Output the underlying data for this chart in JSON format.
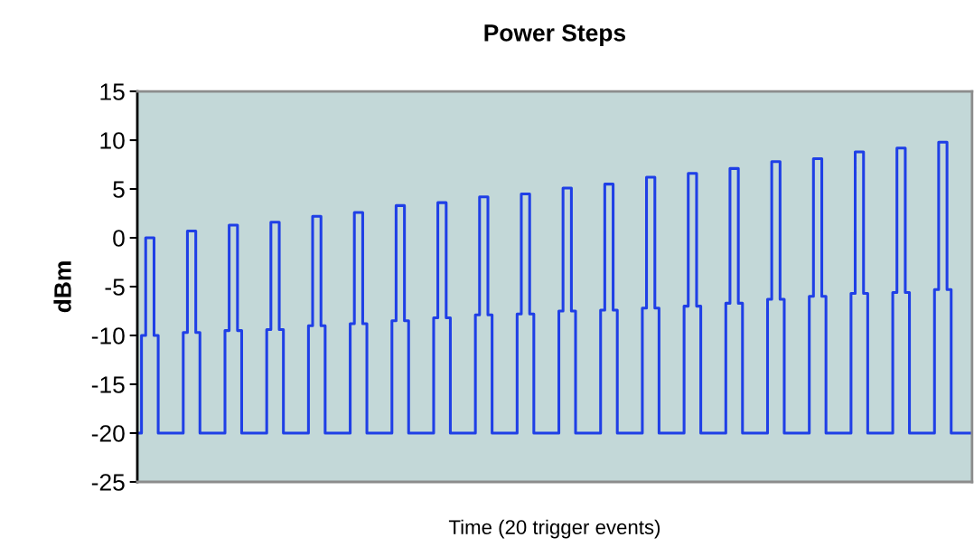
{
  "chart_data": {
    "type": "step",
    "title": "Power Steps",
    "xlabel": "Time (20 trigger events)",
    "ylabel": "dBm",
    "categories": [
      null,
      null,
      null,
      null,
      null,
      null,
      null,
      null,
      null,
      null,
      null,
      null,
      null,
      null,
      null,
      null,
      null,
      null,
      null,
      null,
      null,
      null,
      null,
      null,
      null,
      null,
      null,
      null,
      null,
      null,
      null,
      null,
      null,
      null,
      null,
      null,
      null,
      null,
      null,
      null,
      null,
      null,
      null,
      null,
      null,
      null,
      null,
      null,
      null,
      null,
      null,
      null,
      null,
      null,
      null,
      null,
      null,
      null,
      null,
      null,
      null,
      null,
      null,
      null,
      null,
      null,
      null,
      null,
      null,
      null,
      null,
      null,
      null,
      null,
      null,
      null,
      null,
      null,
      null,
      null,
      null,
      null,
      null,
      null,
      null,
      null,
      null,
      null,
      null,
      null,
      null,
      null,
      null,
      null,
      null,
      null,
      null,
      null,
      null,
      null,
      null,
      null,
      null,
      null,
      null,
      null,
      null,
      null,
      null,
      null,
      null,
      null,
      null,
      null,
      null,
      null,
      null,
      null,
      null,
      null,
      null,
      null,
      null,
      null,
      null,
      null,
      null,
      null,
      null,
      null,
      null,
      null,
      null,
      null,
      null,
      null,
      null,
      null,
      null,
      null,
      null,
      null,
      null,
      null,
      null,
      null,
      null,
      null,
      null,
      null,
      null,
      null,
      null,
      null,
      null,
      null,
      null,
      null,
      null,
      null,
      null,
      null,
      null,
      null,
      null,
      null,
      null,
      null,
      null,
      null,
      null,
      null,
      null,
      null,
      null,
      null,
      null,
      null,
      null,
      null,
      null,
      null,
      null,
      null,
      null,
      null,
      null,
      null,
      null,
      null,
      null,
      null,
      null,
      null,
      null,
      null,
      null,
      null,
      null,
      null,
      null
    ],
    "values": [
      -20,
      -10,
      0,
      0,
      -10,
      -20,
      -20,
      -20,
      -20,
      -20,
      -20,
      -9.7,
      0.7,
      0.7,
      -9.7,
      -20,
      -20,
      -20,
      -20,
      -20,
      -20,
      -9.5,
      1.3,
      1.3,
      -9.5,
      -20,
      -20,
      -20,
      -20,
      -20,
      -20,
      -9.4,
      1.6,
      1.6,
      -9.4,
      -20,
      -20,
      -20,
      -20,
      -20,
      -20,
      -9,
      2.2,
      2.2,
      -9,
      -20,
      -20,
      -20,
      -20,
      -20,
      -20,
      -8.8,
      2.6,
      2.6,
      -8.8,
      -20,
      -20,
      -20,
      -20,
      -20,
      -20,
      -8.5,
      3.3,
      3.3,
      -8.5,
      -20,
      -20,
      -20,
      -20,
      -20,
      -20,
      -8.2,
      3.6,
      3.6,
      -8.2,
      -20,
      -20,
      -20,
      -20,
      -20,
      -20,
      -7.9,
      4.2,
      4.2,
      -7.9,
      -20,
      -20,
      -20,
      -20,
      -20,
      -20,
      -7.8,
      4.5,
      4.5,
      -7.8,
      -20,
      -20,
      -20,
      -20,
      -20,
      -20,
      -7.5,
      5.1,
      5.1,
      -7.5,
      -20,
      -20,
      -20,
      -20,
      -20,
      -20,
      -7.4,
      5.5,
      5.5,
      -7.4,
      -20,
      -20,
      -20,
      -20,
      -20,
      -20,
      -7.2,
      6.2,
      6.2,
      -7.2,
      -20,
      -20,
      -20,
      -20,
      -20,
      -20,
      -7,
      6.6,
      6.6,
      -7,
      -20,
      -20,
      -20,
      -20,
      -20,
      -20,
      -6.7,
      7.1,
      7.1,
      -6.7,
      -20,
      -20,
      -20,
      -20,
      -20,
      -20,
      -6.3,
      7.8,
      7.8,
      -6.3,
      -20,
      -20,
      -20,
      -20,
      -20,
      -20,
      -6,
      8.1,
      8.1,
      -6,
      -20,
      -20,
      -20,
      -20,
      -20,
      -20,
      -5.7,
      8.8,
      8.8,
      -5.7,
      -20,
      -20,
      -20,
      -20,
      -20,
      -20,
      -5.6,
      9.2,
      9.2,
      -5.6,
      -20,
      -20,
      -20,
      -20,
      -20,
      -20,
      -5.3,
      9.8,
      9.8,
      -5.3,
      -20,
      -20,
      -20,
      -20,
      -20,
      -20
    ],
    "color": "#1f3fe6",
    "ylim": [
      -25,
      15
    ],
    "yticks": [
      -25,
      -20,
      -15,
      -10,
      -5,
      0,
      5,
      10,
      15
    ],
    "tick_labels": "y"
  }
}
